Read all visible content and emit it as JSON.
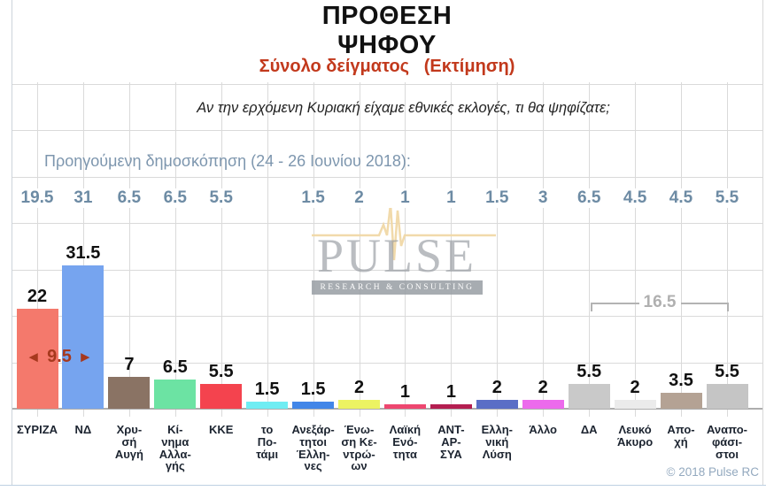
{
  "header": {
    "title_line1": "ΠΡΟΘΕΣΗ",
    "title_line2": "ΨΗΦΟΥ",
    "subtitle": "Σύνολο δείγματος   (Εκτίμηση)",
    "question": "Αν την ερχόμενη Κυριακή είχαμε εθνικές εκλογές, τι θα ψηφίζατε;"
  },
  "previous_poll": {
    "label": "Προηγούμενη δημοσκόπηση (24 - 26 Ιουνίου 2018):"
  },
  "watermark": {
    "name": "PULSE",
    "tagline": "RESEARCH & CONSULTING"
  },
  "footer": {
    "copyright": "© 2018 Pulse RC"
  },
  "annotations": {
    "lead_gap": {
      "left_arrow": "◄",
      "value": "9.5",
      "right_arrow": "►",
      "between": [
        "ΣΥΡΙΖΑ",
        "ΝΔ"
      ],
      "color": "#a6391e"
    },
    "bracket_sum": {
      "value": "16.5",
      "from_category": "ΔΑ",
      "to_category": "Αναποφάσιστοι"
    }
  },
  "chart_data": {
    "type": "bar",
    "title": "ΠΡΟΘΕΣΗ ΨΗΦΟΥ",
    "subtitle": "Σύνολο δείγματος (Εκτίμηση)",
    "question": "Αν την ερχόμενη Κυριακή είχαμε εθνικές εκλογές, τι θα ψηφίζατε;",
    "categories": [
      "ΣΥΡΙΖΑ",
      "ΝΔ",
      "Χρυσή Αυγή",
      "Κίνημα Αλλαγής",
      "ΚΚΕ",
      "το Ποτάμι",
      "Ανεξάρτητοι Έλληνες",
      "Ένωση Κεντρώων",
      "Λαϊκή Ενότητα",
      "ΑΝΤ-ΑΡ-ΣΥΑ",
      "Ελληνική Λύση",
      "Άλλο",
      "ΔΑ",
      "Λευκό Άκυρο",
      "Αποχή",
      "Αναποφάσιστοι"
    ],
    "category_label_lines": [
      [
        "ΣΥΡΙΖΑ"
      ],
      [
        "ΝΔ"
      ],
      [
        "Χρυ-",
        "σή",
        "Αυγή"
      ],
      [
        "Κί-",
        "νημα",
        "Αλλα-",
        "γής"
      ],
      [
        "ΚΚΕ"
      ],
      [
        "το",
        "Πο-",
        "τάμι"
      ],
      [
        "Ανεξάρ-",
        "τητοι",
        "Έλλη-",
        "νες"
      ],
      [
        "Ένω-",
        "ση Κε-",
        "ντρώ-",
        "ων"
      ],
      [
        "Λαϊκή",
        "Ενό-",
        "τητα"
      ],
      [
        "ΑΝΤ-",
        "ΑΡ-",
        "ΣΥΑ"
      ],
      [
        "Ελλη-",
        "νική",
        "Λύση"
      ],
      [
        "Άλλο"
      ],
      [
        "ΔΑ"
      ],
      [
        "Λευκό",
        "Άκυρο"
      ],
      [
        "Απο-",
        "χή"
      ],
      [
        "Αναπο-",
        "φάσι-",
        "στοι"
      ]
    ],
    "series": [
      {
        "name": "Εκτίμηση",
        "values": [
          22,
          31.5,
          7,
          6.5,
          5.5,
          1.5,
          1.5,
          2,
          1,
          1,
          2,
          2,
          5.5,
          2,
          3.5,
          5.5
        ]
      },
      {
        "name": "Προηγούμενη δημοσκόπηση (24 - 26 Ιουνίου 2018)",
        "values": [
          19.5,
          31,
          6.5,
          6.5,
          5.5,
          null,
          1.5,
          2,
          1,
          1,
          1.5,
          3,
          6.5,
          4.5,
          4.5,
          5.5
        ]
      }
    ],
    "bar_colors": [
      "#F4796C",
      "#76A4EF",
      "#8A7364",
      "#6CE3A3",
      "#F4434E",
      "#6FEDF3",
      "#4286E8",
      "#ECF362",
      "#EE4770",
      "#B41E50",
      "#5A6EC6",
      "#EC6AEC",
      "#C9C9C9",
      "#EBEBEB",
      "#B4A294",
      "#C5C5C5"
    ],
    "ylim": [
      0,
      35
    ],
    "grid": true,
    "value_labels": true,
    "legend_position": "none"
  }
}
